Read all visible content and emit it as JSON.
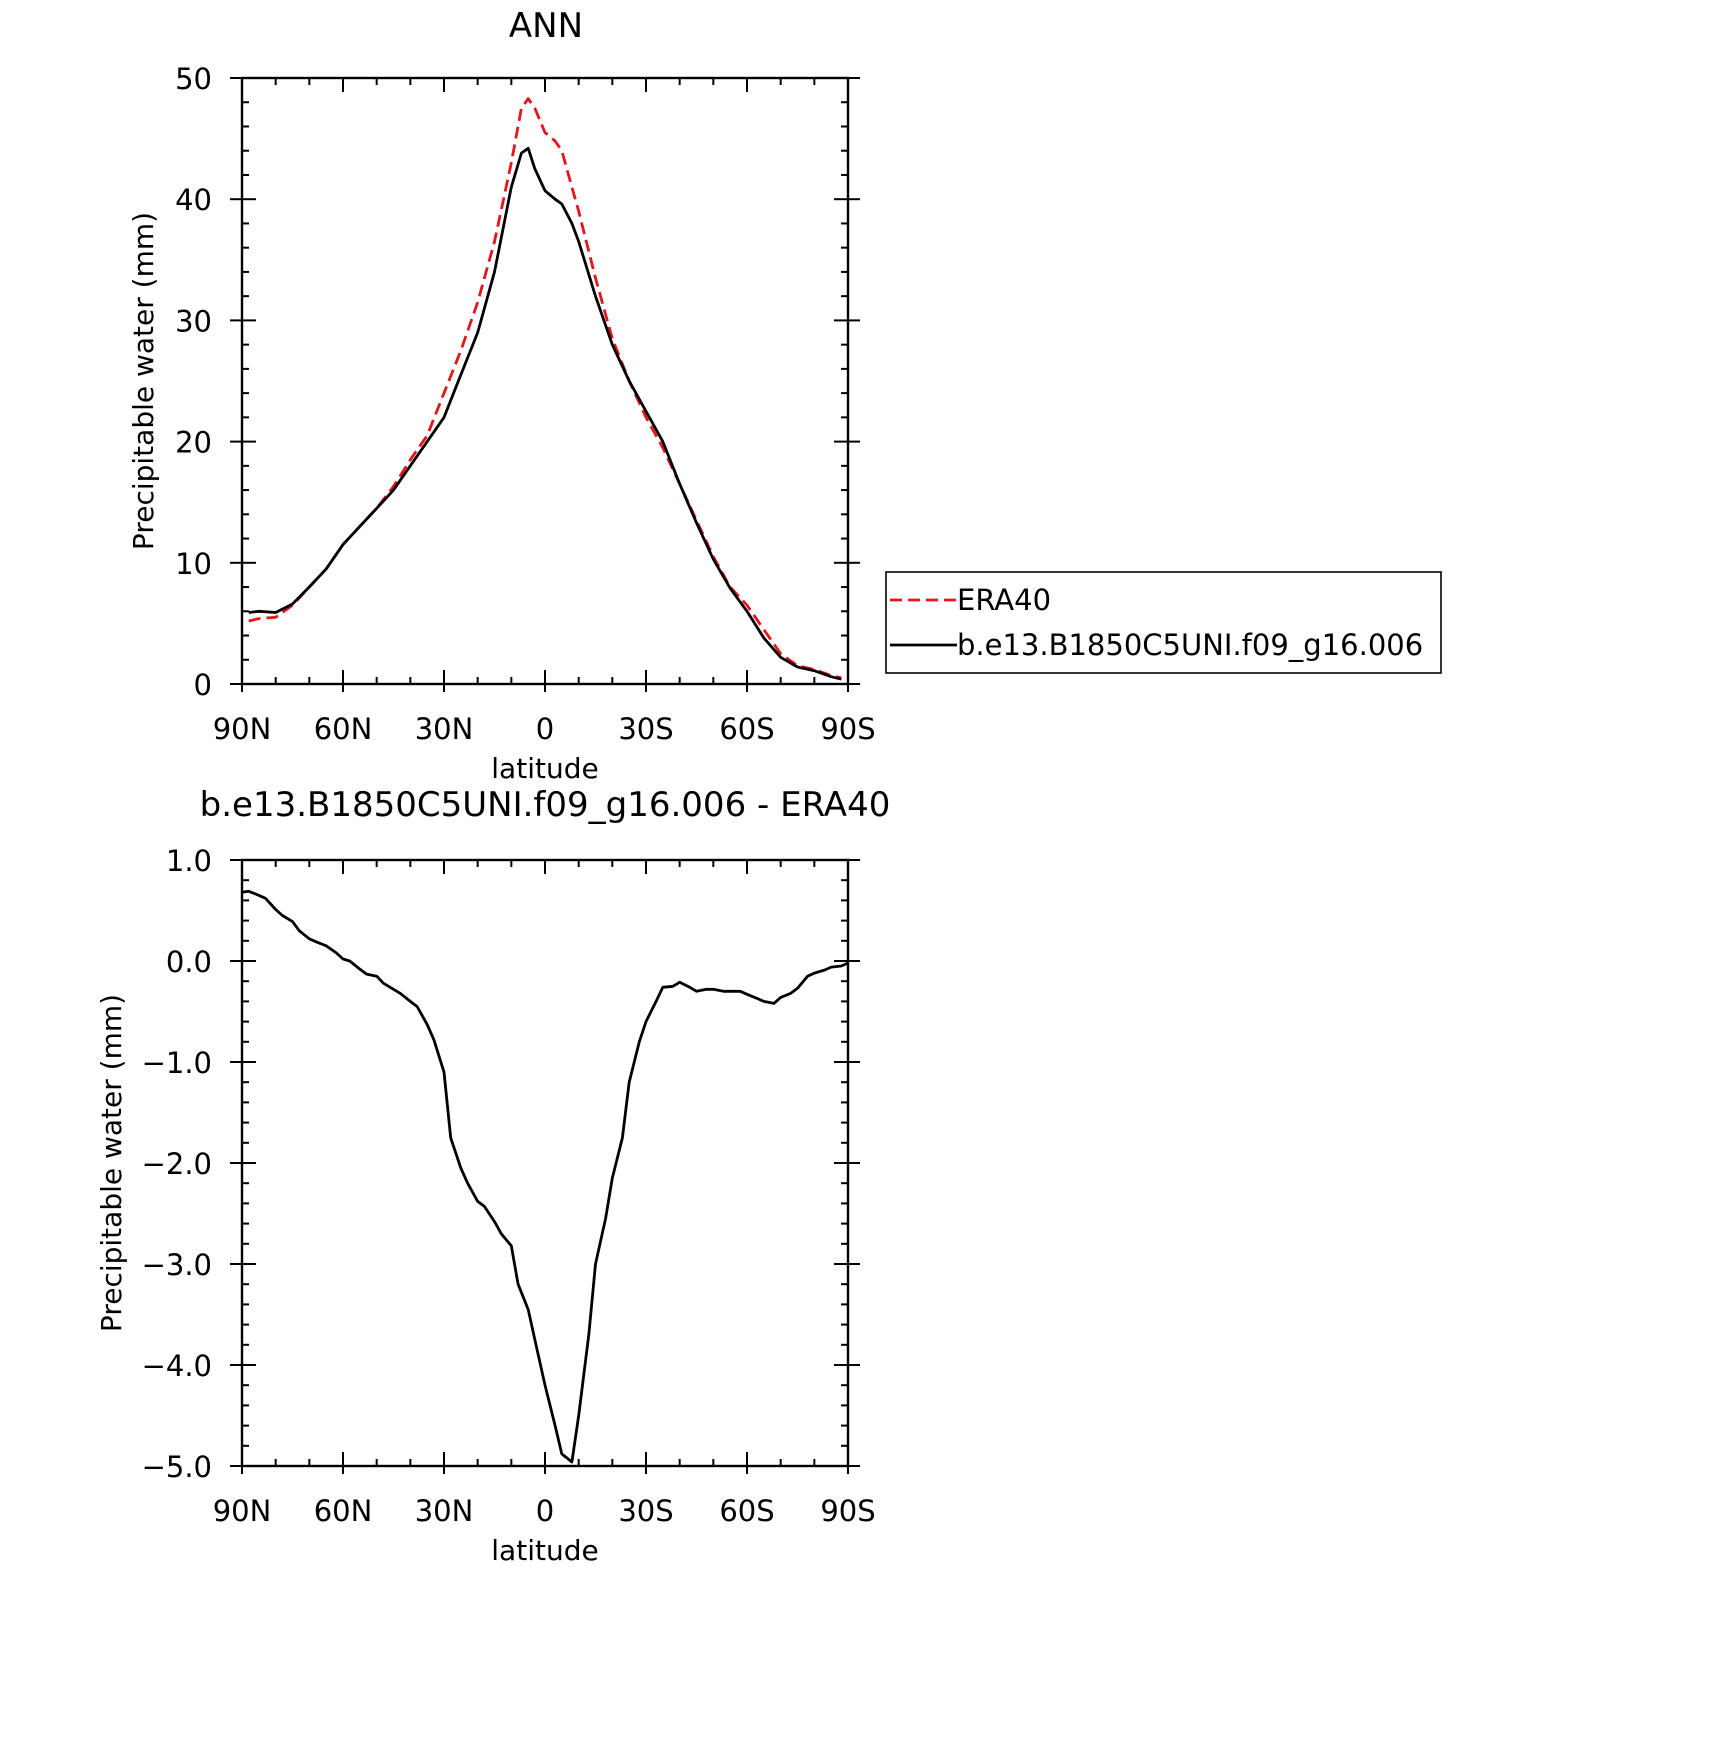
{
  "chart_data": [
    {
      "type": "line",
      "title": "ANN",
      "xlabel": "latitude",
      "ylabel": "Precipitable water (mm)",
      "xlim": [
        -90,
        90
      ],
      "x_direction": "north-to-south",
      "ylim": [
        0,
        50
      ],
      "x_ticks": [
        {
          "value": -90,
          "label": "90N"
        },
        {
          "value": -60,
          "label": "60N"
        },
        {
          "value": -30,
          "label": "30N"
        },
        {
          "value": 0,
          "label": "0"
        },
        {
          "value": 30,
          "label": "30S"
        },
        {
          "value": 60,
          "label": "60S"
        },
        {
          "value": 90,
          "label": "90S"
        }
      ],
      "y_ticks": [
        {
          "value": 0,
          "label": "0"
        },
        {
          "value": 10,
          "label": "10"
        },
        {
          "value": 20,
          "label": "20"
        },
        {
          "value": 30,
          "label": "30"
        },
        {
          "value": 40,
          "label": "40"
        },
        {
          "value": 50,
          "label": "50"
        }
      ],
      "x": [
        -88,
        -85,
        -80,
        -75,
        -70,
        -65,
        -60,
        -55,
        -50,
        -45,
        -40,
        -35,
        -30,
        -25,
        -20,
        -15,
        -10,
        -7,
        -5,
        -3,
        0,
        3,
        5,
        8,
        10,
        15,
        20,
        25,
        30,
        35,
        40,
        45,
        50,
        55,
        60,
        65,
        70,
        75,
        80,
        85,
        88
      ],
      "series": [
        {
          "name": "ERA40",
          "color": "#e8141b",
          "dash": "dashed",
          "values": [
            5.2,
            5.4,
            5.5,
            6.5,
            8.0,
            9.5,
            11.5,
            13.0,
            14.5,
            16.3,
            18.5,
            20.5,
            24.0,
            27.5,
            31.5,
            36.5,
            43.0,
            47.5,
            48.3,
            47.5,
            45.5,
            44.8,
            44.0,
            41.0,
            39.0,
            33.5,
            28.5,
            25.0,
            22.0,
            19.5,
            16.5,
            13.5,
            10.5,
            8.0,
            6.5,
            4.5,
            2.5,
            1.5,
            1.2,
            0.7,
            0.5
          ]
        },
        {
          "name": "b.e13.B1850C5UNI.f09_g16.006",
          "color": "#000000",
          "dash": "solid",
          "values": [
            5.9,
            6.0,
            5.9,
            6.6,
            8.0,
            9.5,
            11.5,
            13.0,
            14.5,
            16.0,
            18.0,
            20.0,
            22.0,
            25.5,
            29.0,
            34.0,
            41.0,
            43.8,
            44.2,
            42.5,
            40.7,
            40.0,
            39.6,
            38.0,
            36.5,
            32.0,
            28.0,
            25.0,
            22.5,
            20.0,
            16.5,
            13.3,
            10.3,
            7.9,
            6.0,
            3.8,
            2.2,
            1.4,
            1.1,
            0.6,
            0.4
          ]
        }
      ],
      "legend": {
        "placement": "right",
        "entries": [
          "ERA40",
          "b.e13.B1850C5UNI.f09_g16.006"
        ]
      }
    },
    {
      "type": "line",
      "title": "b.e13.B1850C5UNI.f09_g16.006 - ERA40",
      "xlabel": "latitude",
      "ylabel": "Precipitable water (mm)",
      "xlim": [
        -90,
        90
      ],
      "x_direction": "north-to-south",
      "ylim": [
        -5,
        1
      ],
      "x_ticks": [
        {
          "value": -90,
          "label": "90N"
        },
        {
          "value": -60,
          "label": "60N"
        },
        {
          "value": -30,
          "label": "30N"
        },
        {
          "value": 0,
          "label": "0"
        },
        {
          "value": 30,
          "label": "30S"
        },
        {
          "value": 60,
          "label": "60S"
        },
        {
          "value": 90,
          "label": "90S"
        }
      ],
      "y_ticks": [
        {
          "value": 1,
          "label": "1.0"
        },
        {
          "value": 0,
          "label": "0.0"
        },
        {
          "value": -1,
          "label": "−1.0"
        },
        {
          "value": -2,
          "label": "−2.0"
        },
        {
          "value": -3,
          "label": "−3.0"
        },
        {
          "value": -4,
          "label": "−4.0"
        },
        {
          "value": -5,
          "label": "−5.0"
        }
      ],
      "x": [
        -90,
        -88,
        -85,
        -83,
        -80,
        -78,
        -75,
        -73,
        -70,
        -68,
        -65,
        -62,
        -60,
        -58,
        -55,
        -53,
        -50,
        -48,
        -45,
        -43,
        -40,
        -38,
        -35,
        -33,
        -30,
        -28,
        -25,
        -23,
        -20,
        -18,
        -15,
        -13,
        -10,
        -8,
        -5,
        -3,
        0,
        3,
        5,
        8,
        10,
        13,
        15,
        18,
        20,
        23,
        25,
        28,
        30,
        33,
        35,
        38,
        40,
        43,
        45,
        48,
        50,
        53,
        55,
        58,
        60,
        63,
        65,
        68,
        70,
        73,
        75,
        78,
        80,
        83,
        85,
        88,
        90
      ],
      "series": [
        {
          "name": "",
          "color": "#000000",
          "dash": "solid",
          "values": [
            0.68,
            0.69,
            0.65,
            0.62,
            0.51,
            0.45,
            0.39,
            0.3,
            0.22,
            0.19,
            0.15,
            0.08,
            0.02,
            0.0,
            -0.08,
            -0.13,
            -0.15,
            -0.22,
            -0.28,
            -0.32,
            -0.4,
            -0.45,
            -0.63,
            -0.78,
            -1.1,
            -1.75,
            -2.05,
            -2.2,
            -2.38,
            -2.43,
            -2.58,
            -2.7,
            -2.82,
            -3.2,
            -3.45,
            -3.75,
            -4.2,
            -4.6,
            -4.88,
            -4.96,
            -4.5,
            -3.7,
            -3.0,
            -2.55,
            -2.15,
            -1.75,
            -1.2,
            -0.8,
            -0.6,
            -0.4,
            -0.26,
            -0.25,
            -0.21,
            -0.26,
            -0.3,
            -0.28,
            -0.28,
            -0.3,
            -0.3,
            -0.3,
            -0.33,
            -0.37,
            -0.4,
            -0.42,
            -0.36,
            -0.32,
            -0.27,
            -0.15,
            -0.12,
            -0.09,
            -0.06,
            -0.05,
            -0.02
          ]
        }
      ]
    }
  ]
}
